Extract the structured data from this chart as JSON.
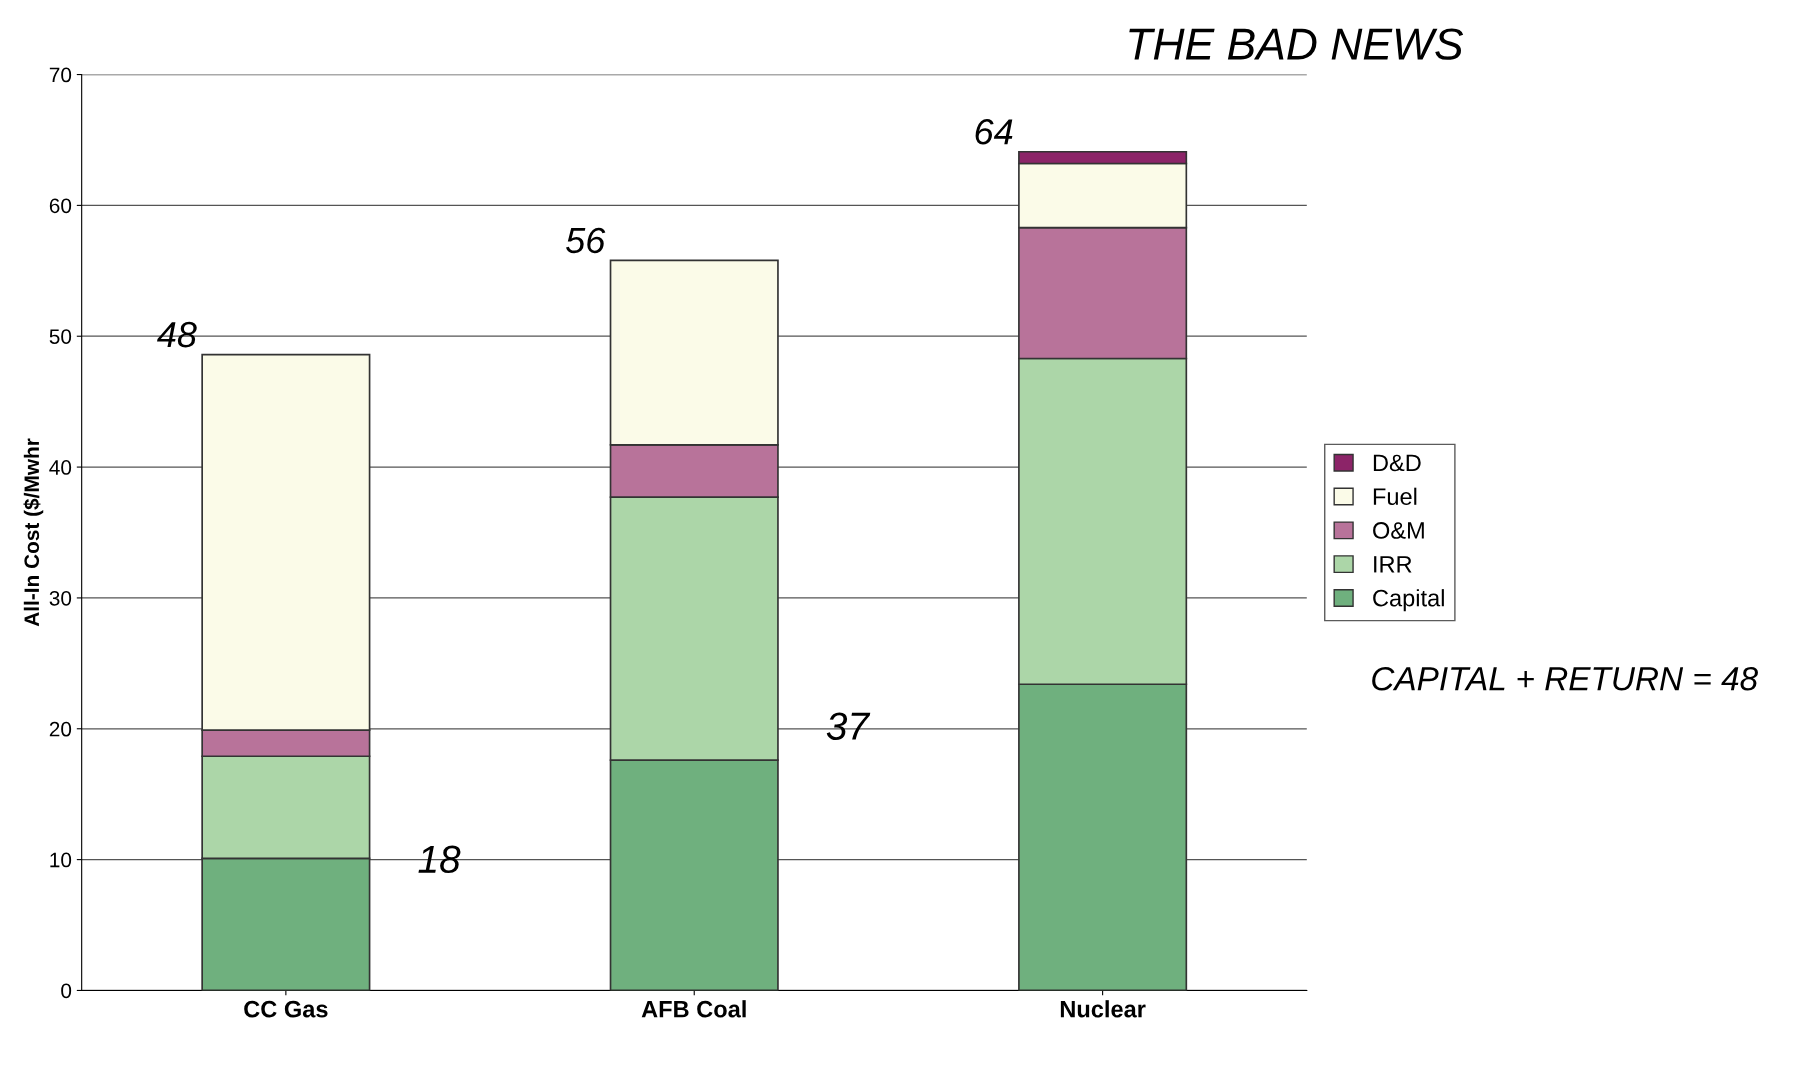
{
  "chart_data": {
    "type": "bar",
    "stacked": true,
    "ylabel": "All-In Cost ($/Mwhr",
    "categories": [
      "CC Gas",
      "AFB Coal",
      "Nuclear"
    ],
    "series": [
      {
        "name": "Capital",
        "color": "#6fb07e",
        "values": [
          10.1,
          17.6,
          23.4
        ]
      },
      {
        "name": "IRR",
        "color": "#acd6a8",
        "values": [
          7.8,
          20.1,
          24.9
        ]
      },
      {
        "name": "O&M",
        "color": "#b8739a",
        "values": [
          2.0,
          4.0,
          10.0
        ]
      },
      {
        "name": "Fuel",
        "color": "#fbfbe8",
        "values": [
          28.7,
          14.1,
          4.9
        ]
      },
      {
        "name": "D&D",
        "color": "#8c2468",
        "values": [
          null,
          null,
          0.9
        ]
      }
    ],
    "ylim": [
      0,
      70
    ],
    "yticks": [
      0,
      10,
      20,
      30,
      40,
      50,
      60,
      70
    ],
    "grid": "y",
    "legend": "right",
    "annotations": [
      "THE BAD NEWS",
      {
        "text": "48",
        "x": "CC Gas",
        "y": 48.6
      },
      {
        "text": "56",
        "x": "AFB Coal",
        "y": 55.8
      },
      {
        "text": "64",
        "x": "Nuclear",
        "y": 64.1
      },
      "18",
      "37",
      "CAPITAL + RETURN = 48"
    ]
  }
}
